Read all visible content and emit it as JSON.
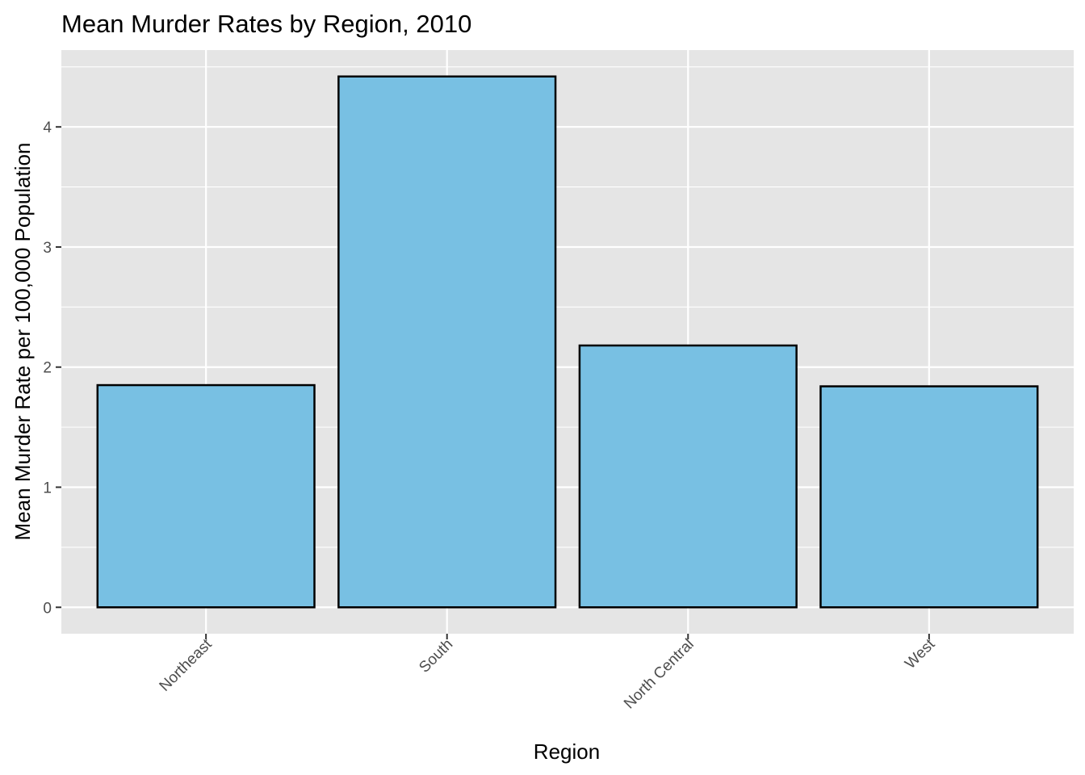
{
  "chart_data": {
    "type": "bar",
    "title": "Mean Murder Rates by Region, 2010",
    "xlabel": "Region",
    "ylabel": "Mean Murder Rate per 100,000 Population",
    "categories": [
      "Northeast",
      "South",
      "North Central",
      "West"
    ],
    "values": [
      1.85,
      4.42,
      2.18,
      1.84
    ],
    "ylim": [
      -0.22,
      4.64
    ],
    "yticks": [
      0,
      1,
      2,
      3,
      4
    ],
    "ytick_labels": [
      "0",
      "1",
      "2",
      "3",
      "4"
    ],
    "grid": true,
    "legend": "none",
    "colors": {
      "bar_fill": "#78c0e3",
      "bar_stroke": "#000000",
      "panel_background": "#e5e5e5",
      "grid": "#ffffff"
    }
  }
}
